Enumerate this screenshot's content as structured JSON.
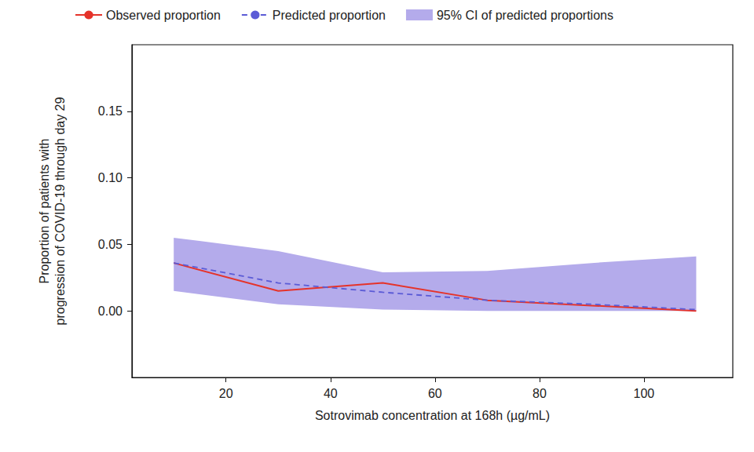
{
  "chart_data": {
    "type": "line",
    "x_label": "Sotrovimab concentration at 168h (µg/mL)",
    "y_label": "Proportion of patients with\nprogression of COVID-19 through day 29",
    "x": [
      10,
      30,
      50,
      70,
      90,
      110
    ],
    "series": [
      {
        "name": "Observed proportion",
        "color": "#e5332a",
        "line_style": "solid",
        "values": [
          0.036,
          0.015,
          0.021,
          0.008,
          0.004,
          0.0
        ]
      },
      {
        "name": "Predicted proportion",
        "color": "#5b5bd6",
        "line_style": "dashed",
        "values": [
          0.036,
          0.021,
          0.014,
          0.008,
          0.005,
          0.001
        ]
      },
      {
        "name": "95% CI of predicted proportions",
        "color": "#b4abeb",
        "type": "band",
        "lower": [
          0.015,
          0.005,
          0.001,
          0.0,
          0.0,
          0.0
        ],
        "upper": [
          0.055,
          0.045,
          0.029,
          0.03,
          0.036,
          0.041
        ]
      }
    ],
    "xlim": [
      2,
      117
    ],
    "xticks": [
      20,
      40,
      60,
      80,
      100
    ],
    "ylim": [
      -0.05,
      0.2
    ],
    "yticks": [
      {
        "value": 0,
        "label": "0.00"
      },
      {
        "value": 0.05,
        "label": "0.05"
      },
      {
        "value": 0.1,
        "label": "0.10"
      },
      {
        "value": 0.15,
        "label": "0.15"
      }
    ],
    "grid": false,
    "legend": "top"
  }
}
